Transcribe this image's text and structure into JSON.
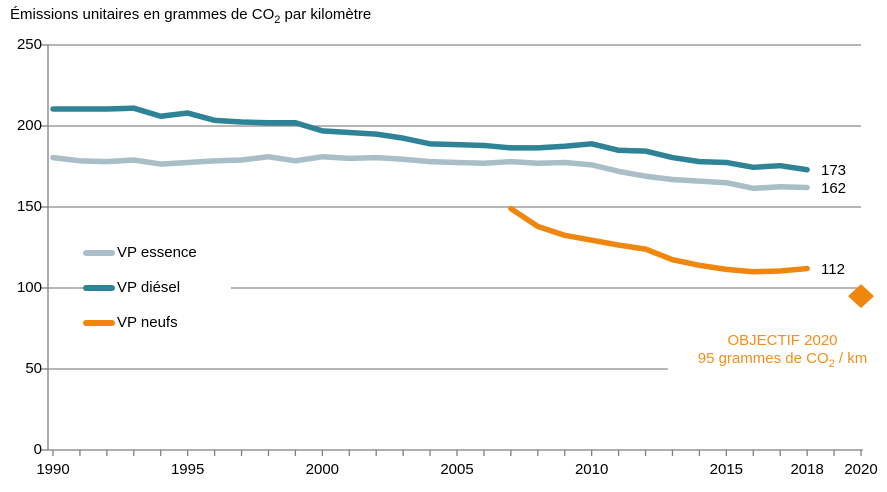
{
  "title": {
    "prefix": "Émissions unitaires en grammes de CO",
    "sub": "2",
    "suffix": " par kilomètre"
  },
  "colors": {
    "essence": "#a9bec7",
    "diesel": "#2f8396",
    "neufs": "#ef870f",
    "grid": "#8a8a8a",
    "axis": "#7f7f7f",
    "label_text": "#000000",
    "annotation_text": "#f28f1c",
    "background": "#ffffff"
  },
  "chart_data": {
    "type": "line",
    "title": "Émissions unitaires en grammes de CO2 par kilomètre",
    "xlabel": "",
    "ylabel": "grammes de CO2 par kilomètre",
    "xlim": [
      1990,
      2020
    ],
    "ylim": [
      0,
      250
    ],
    "y_ticks": [
      0,
      50,
      100,
      150,
      200,
      250
    ],
    "x_labels": [
      1990,
      1995,
      2000,
      2005,
      2010,
      2015,
      2018,
      2020
    ],
    "x_minor_tick_step_years": 1,
    "grid": "horizontal",
    "legend_position": "middle-left",
    "series": [
      {
        "name": "VP essence",
        "color": "#a9bec7",
        "x_start": 1990,
        "end_label": "162",
        "values": [
          180.5,
          178.5,
          178,
          179,
          176.5,
          177.5,
          178.5,
          179,
          181,
          178.5,
          181,
          180,
          180.5,
          179.5,
          178,
          177.5,
          177,
          178,
          177,
          177.5,
          176,
          172,
          169,
          167,
          166,
          165,
          161.5,
          162.5,
          162
        ]
      },
      {
        "name": "VP diésel",
        "color": "#2f8396",
        "x_start": 1990,
        "end_label": "173",
        "values": [
          210.5,
          210.5,
          210.5,
          211,
          206,
          208,
          203.5,
          202.5,
          202,
          202,
          197,
          196,
          195,
          192.5,
          189,
          188.5,
          188,
          186.5,
          186.5,
          187.5,
          189,
          185,
          184.5,
          180.5,
          178,
          177.5,
          174.5,
          175.5,
          173
        ]
      },
      {
        "name": "VP neufs",
        "color": "#ef870f",
        "x_start": 2007,
        "end_label": "112",
        "values": [
          149,
          138,
          132.5,
          129.5,
          126.5,
          124,
          117.5,
          114,
          111.5,
          110,
          110.5,
          112
        ]
      }
    ],
    "objective": {
      "x": 2020,
      "y": 95,
      "marker": "diamond",
      "color": "#ef870f",
      "label": [
        "OBJECTIF 2020",
        "95 grammes de CO2 / km"
      ]
    }
  },
  "legend": {
    "items": [
      {
        "label": "VP essence",
        "color": "#a9bec7"
      },
      {
        "label": "VP diésel",
        "color": "#2f8396"
      },
      {
        "label": "VP neufs",
        "color": "#ef870f"
      }
    ]
  },
  "annotation": {
    "line1": "OBJECTIF 2020",
    "line2_prefix": "95 grammes de CO",
    "line2_sub": "2",
    "line2_suffix": " / km"
  },
  "end_labels": {
    "diesel": "173",
    "essence": "162",
    "neufs": "112"
  }
}
